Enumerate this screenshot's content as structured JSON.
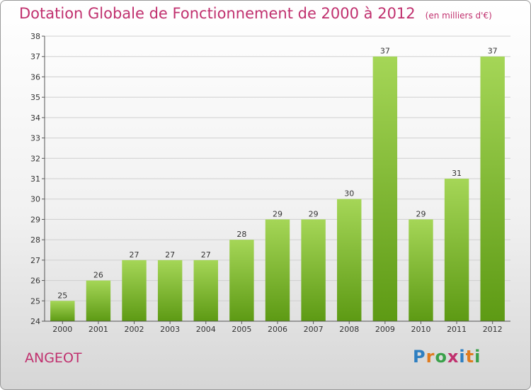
{
  "header": {
    "title": "Dotation Globale de Fonctionnement de 2000 à 2012",
    "subtitle": "(en milliers d'€)"
  },
  "place_name": "ANGEOT",
  "logo": {
    "text": "Proxiti",
    "letter_colors": [
      "#2e7fc1",
      "#e07b1e",
      "#3aa14a",
      "#c0306e",
      "#2e7fc1",
      "#e07b1e",
      "#3aa14a"
    ]
  },
  "colors": {
    "title": "#c0306e",
    "bar_top": "#a5d657",
    "bar_bottom": "#5d9a14",
    "grid": "#cfcfcf"
  },
  "chart_data": {
    "type": "bar",
    "title": "Dotation Globale de Fonctionnement de 2000 à 2012",
    "subtitle": "(en milliers d'€)",
    "categories": [
      "2000",
      "2001",
      "2002",
      "2003",
      "2004",
      "2005",
      "2006",
      "2007",
      "2008",
      "2009",
      "2010",
      "2011",
      "2012"
    ],
    "values": [
      25,
      26,
      27,
      27,
      27,
      28,
      29,
      29,
      30,
      37,
      29,
      31,
      37
    ],
    "ylim": [
      24,
      38
    ],
    "yticks": [
      24,
      25,
      26,
      27,
      28,
      29,
      30,
      31,
      32,
      33,
      34,
      35,
      36,
      37,
      38
    ],
    "grid": true,
    "xlabel": "",
    "ylabel": ""
  }
}
